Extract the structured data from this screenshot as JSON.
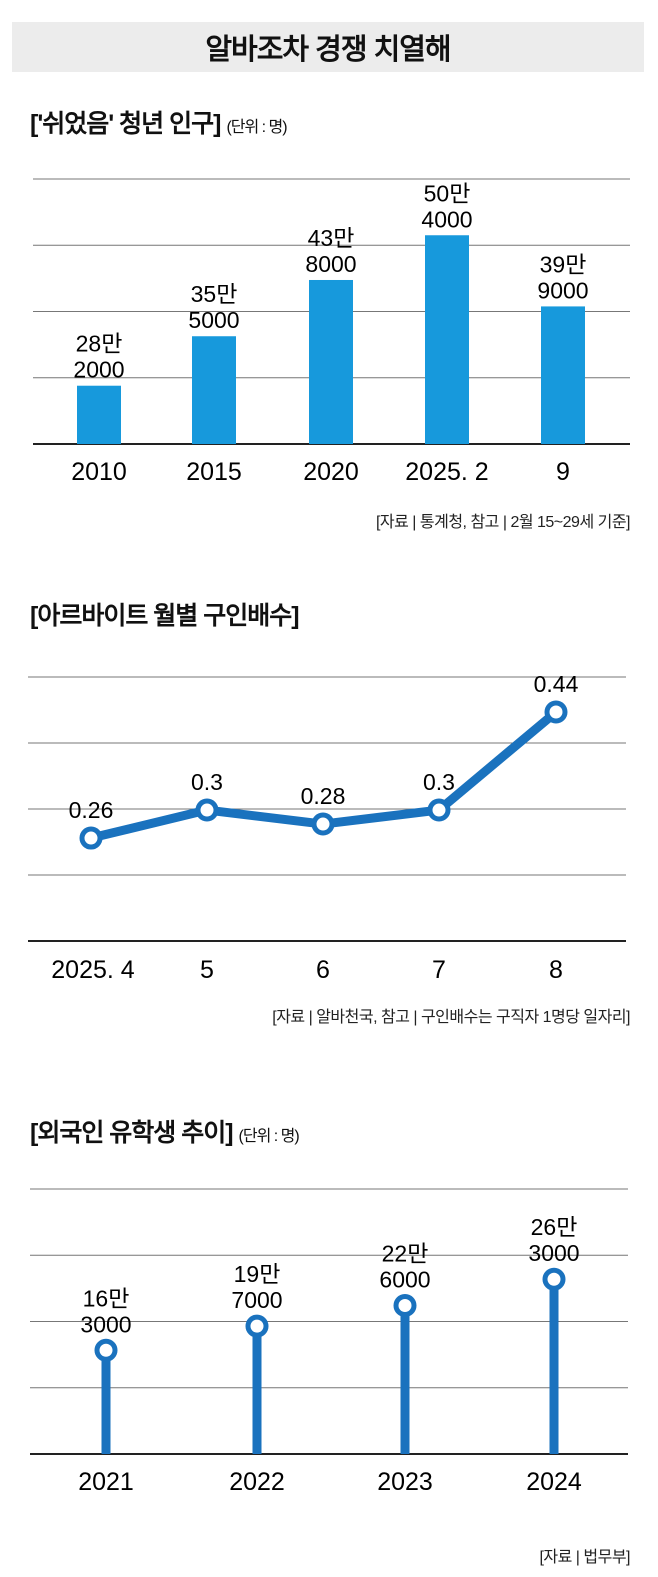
{
  "header": {
    "title": "알바조차 경쟁 치열해"
  },
  "accent_color": "#1799dc",
  "line_color": "#1a72be",
  "chart_data": [
    {
      "type": "bar",
      "title": "['쉬었음' 청년 인구]",
      "unit": "(단위 : 명)",
      "categories": [
        "2010",
        "2015",
        "2020",
        "2025. 2",
        "9"
      ],
      "values": [
        282000,
        355000,
        438000,
        504000,
        399000
      ],
      "labels": [
        [
          "28만",
          "2000"
        ],
        [
          "35만",
          "5000"
        ],
        [
          "43만",
          "8000"
        ],
        [
          "50만",
          "4000"
        ],
        [
          "39만",
          "9000"
        ]
      ],
      "ylim": [
        196000,
        587000
      ],
      "grid": true,
      "source": "[자료 | 통계청, 참고 | 2월 15~29세 기준]"
    },
    {
      "type": "line",
      "title": "[아르바이트 월별 구인배수]",
      "categories": [
        "2025. 4",
        "5",
        "6",
        "7",
        "8"
      ],
      "values": [
        0.26,
        0.3,
        0.28,
        0.3,
        0.44
      ],
      "labels": [
        "0.26",
        "0.3",
        "0.28",
        "0.3",
        "0.44"
      ],
      "ylim": [
        0.113,
        0.49
      ],
      "grid": true,
      "source": "[자료 | 알바천국, 참고 | 구인배수는 구직자 1명당 일자리]"
    },
    {
      "type": "bar",
      "style": "lollipop",
      "title": "[외국인 유학생 추이]",
      "unit": "(단위 : 명)",
      "categories": [
        "2021",
        "2022",
        "2023",
        "2024"
      ],
      "values": [
        163000,
        197000,
        226000,
        263000
      ],
      "labels": [
        [
          "16만",
          "3000"
        ],
        [
          "19만",
          "7000"
        ],
        [
          "22만",
          "6000"
        ],
        [
          "26만",
          "3000"
        ]
      ],
      "ylim": [
        17000,
        390000
      ],
      "grid": true,
      "source": "[자료 | 법무부]"
    }
  ]
}
